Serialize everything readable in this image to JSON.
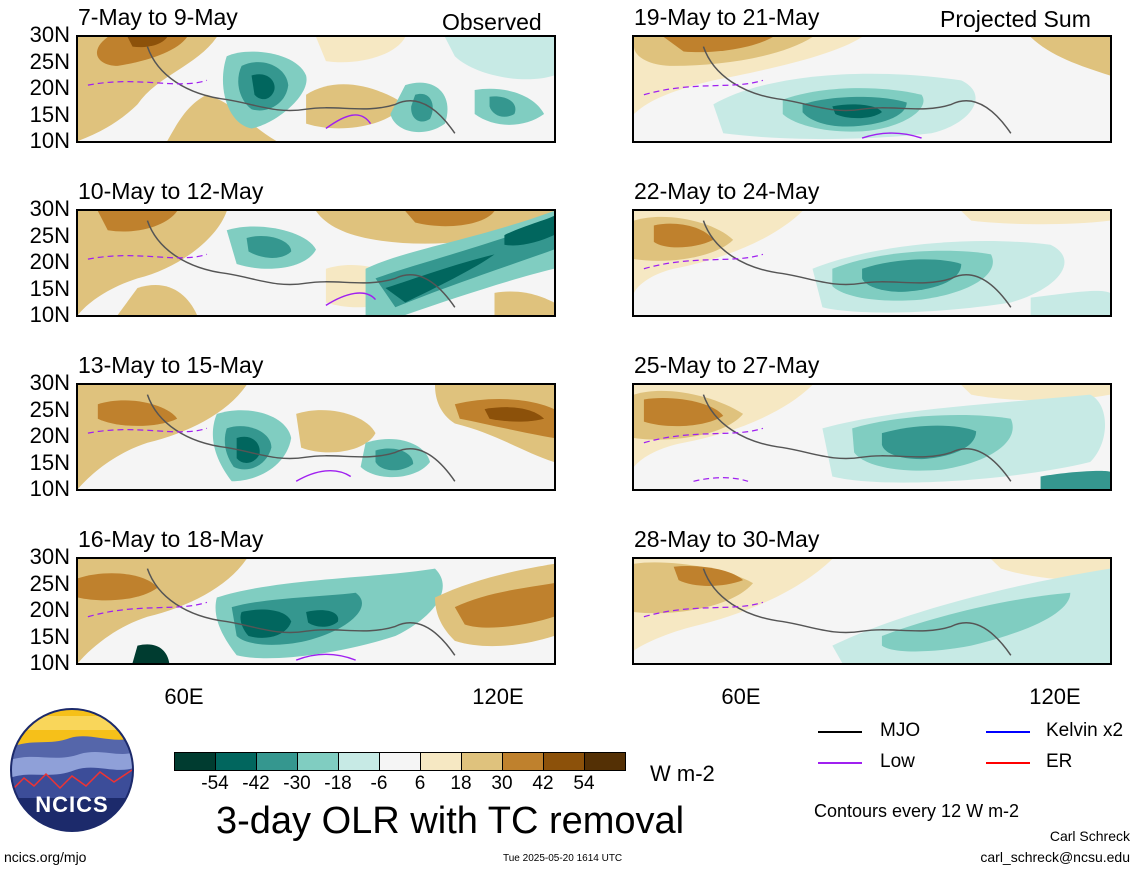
{
  "observed_label": "Observed",
  "projected_label": "Projected Sum",
  "panels": {
    "p0": {
      "title": "7-May to 9-May"
    },
    "p1": {
      "title": "10-May to 12-May"
    },
    "p2": {
      "title": "13-May to 15-May"
    },
    "p3": {
      "title": "16-May to 18-May"
    },
    "p4": {
      "title": "19-May to 21-May"
    },
    "p5": {
      "title": "22-May to 24-May"
    },
    "p6": {
      "title": "25-May to 27-May"
    },
    "p7": {
      "title": "28-May to 30-May"
    }
  },
  "lat_labels": [
    "30N",
    "25N",
    "20N",
    "15N",
    "10N"
  ],
  "lon_labels": [
    "60E",
    "120E"
  ],
  "colorbar": {
    "ticks": [
      "-54",
      "-42",
      "-30",
      "-18",
      "-6",
      "6",
      "18",
      "30",
      "42",
      "54"
    ],
    "colors": [
      "#003c30",
      "#01665e",
      "#35978f",
      "#80cdc1",
      "#c7eae5",
      "#f5f5f5",
      "#f6e8c3",
      "#dfc27d",
      "#bf812d",
      "#8c510a",
      "#543005"
    ],
    "units": "W m-2"
  },
  "legend": {
    "mjo": {
      "label": "MJO",
      "color": "#000000"
    },
    "kelvin": {
      "label": "Kelvin x2",
      "color": "#0000ff"
    },
    "low": {
      "label": "Low",
      "color": "#a020f0"
    },
    "er": {
      "label": "ER",
      "color": "#ff0000"
    }
  },
  "main_title": "3-day OLR with TC removal",
  "contour_note": "Contours every 12 W m-2",
  "author": "Carl Schreck",
  "email": "carl_schreck@ncsu.edu",
  "site": "ncics.org/mjo",
  "timestamp": "Tue 2025-05-20 1614 UTC",
  "logo_text": "NCICS"
}
